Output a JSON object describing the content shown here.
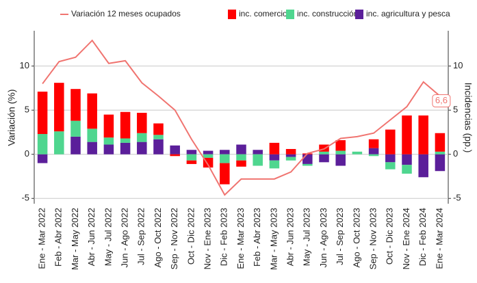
{
  "chart_data": {
    "type": "bar-line",
    "y_label": "Variación (%)",
    "y2_label": "Incidencias (pp.)",
    "categories": [
      "Ene - Mar 2022",
      "Feb - Abr 2022",
      "Mar - May 2022",
      "Abr - Jun 2022",
      "May - Jul 2022",
      "Jun - Ago 2022",
      "Jul - Sep 2022",
      "Ago - Oct 2022",
      "Sep - Nov 2022",
      "Oct - Dic 2022",
      "Nov - Ene 2023",
      "Dic - Feb 2023",
      "Ene - Mar 2023",
      "Feb - Abr 2023",
      "Mar - May 2023",
      "Abr - Jun 2023",
      "May - Jul 2023",
      "Jun - Ago 2023",
      "Jul - Sep 2023",
      "Ago - Oct 2023",
      "Sep - Nov 2023",
      "Oct - Dic 2023",
      "Nov - Ene 2024",
      "Dic - Feb 2024",
      "Ene - Mar 2024"
    ],
    "series": [
      {
        "name": "Variación 12 meses ocupados",
        "kind": "line",
        "color": "#f07470",
        "values": [
          8.0,
          10.5,
          11.0,
          12.9,
          10.3,
          10.6,
          8.1,
          6.6,
          5.0,
          1.7,
          -1.2,
          -4.6,
          -2.8,
          -2.8,
          -2.8,
          -2.0,
          0.1,
          0.6,
          1.8,
          2.0,
          2.4,
          3.9,
          5.4,
          8.2,
          6.6
        ],
        "value_labels": [
          null,
          null,
          null,
          null,
          null,
          null,
          null,
          null,
          null,
          null,
          null,
          null,
          null,
          null,
          null,
          null,
          null,
          null,
          null,
          null,
          null,
          null,
          null,
          null,
          "6,6"
        ]
      },
      {
        "name": "inc. comercio",
        "kind": "bar",
        "color": "#ff0000",
        "values": [
          4.8,
          5.5,
          3.6,
          4.0,
          2.6,
          3.0,
          2.3,
          1.3,
          -0.2,
          -0.4,
          -1.1,
          -2.4,
          -0.7,
          0,
          1.3,
          0.6,
          0.1,
          0.8,
          1.2,
          0,
          1.0,
          2.8,
          4.4,
          4.4,
          2.1
        ]
      },
      {
        "name": "inc. construcción",
        "kind": "bar",
        "color": "#4fd68f",
        "values": [
          2.3,
          2.6,
          1.8,
          1.5,
          0.8,
          0.5,
          1.0,
          0.5,
          0,
          -0.7,
          -0.4,
          -1.0,
          -0.7,
          -1.3,
          -0.9,
          -0.4,
          -0.2,
          0.3,
          0.4,
          0.3,
          -0.2,
          -0.8,
          -1.0,
          0,
          0.3
        ]
      },
      {
        "name": "inc. agricultura y pesca",
        "kind": "bar",
        "color": "#5b1f9a",
        "values": [
          -1.0,
          0,
          2.0,
          1.4,
          1.1,
          1.3,
          1.4,
          1.7,
          1.0,
          0.5,
          0.4,
          0.5,
          1.1,
          0.5,
          -0.7,
          -0.3,
          -1.1,
          -0.9,
          -1.3,
          0,
          0.7,
          -0.9,
          -1.2,
          -2.6,
          -1.9
        ]
      }
    ],
    "ylim": [
      -5.6,
      14
    ],
    "yticks": [
      -5,
      0,
      5,
      10
    ],
    "y2lim": [
      -5.6,
      14
    ],
    "y2ticks": [
      -5,
      0,
      5,
      10
    ],
    "grid": true
  }
}
